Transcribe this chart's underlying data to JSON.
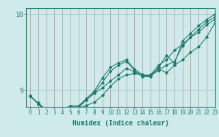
{
  "xlabel": "Humidex (Indice chaleur)",
  "bg_color": "#ceeaea",
  "line_color": "#1e7b6e",
  "xlim": [
    -0.5,
    23
  ],
  "ylim": [
    8.78,
    10.08
  ],
  "yticks": [
    9,
    10
  ],
  "xticks": [
    0,
    1,
    2,
    3,
    4,
    5,
    6,
    7,
    8,
    9,
    10,
    11,
    12,
    13,
    14,
    15,
    16,
    17,
    18,
    19,
    20,
    21,
    22,
    23
  ],
  "series": [
    [
      8.92,
      8.82,
      8.7,
      8.73,
      8.73,
      8.77,
      8.77,
      8.87,
      8.97,
      9.1,
      9.25,
      9.33,
      9.38,
      9.26,
      9.18,
      9.18,
      9.3,
      9.46,
      9.35,
      9.65,
      9.75,
      9.85,
      9.93,
      10.0
    ],
    [
      8.92,
      8.82,
      8.7,
      8.73,
      8.73,
      8.76,
      8.76,
      8.8,
      8.84,
      8.93,
      9.05,
      9.15,
      9.2,
      9.22,
      9.2,
      9.2,
      9.28,
      9.23,
      9.33,
      9.4,
      9.5,
      9.57,
      9.7,
      9.88
    ],
    [
      8.92,
      8.83,
      8.73,
      8.75,
      8.75,
      8.79,
      8.79,
      8.89,
      8.99,
      9.16,
      9.3,
      9.36,
      9.4,
      9.28,
      9.2,
      9.2,
      9.33,
      9.4,
      9.53,
      9.6,
      9.7,
      9.76,
      9.86,
      9.93
    ],
    [
      8.92,
      8.83,
      8.74,
      8.75,
      8.75,
      8.79,
      8.79,
      8.87,
      8.96,
      9.03,
      9.12,
      9.2,
      9.29,
      9.24,
      9.19,
      9.19,
      9.26,
      9.33,
      9.38,
      9.58,
      9.7,
      9.8,
      9.9,
      9.96
    ]
  ],
  "grid_color_v": "#c08888",
  "grid_color_h": "#a8c8c8",
  "font_color": "#1e7b6e",
  "marker": "D",
  "markersize": 1.8,
  "linewidth": 0.8,
  "xlabel_fontsize": 7,
  "tick_fontsize": 5.5
}
